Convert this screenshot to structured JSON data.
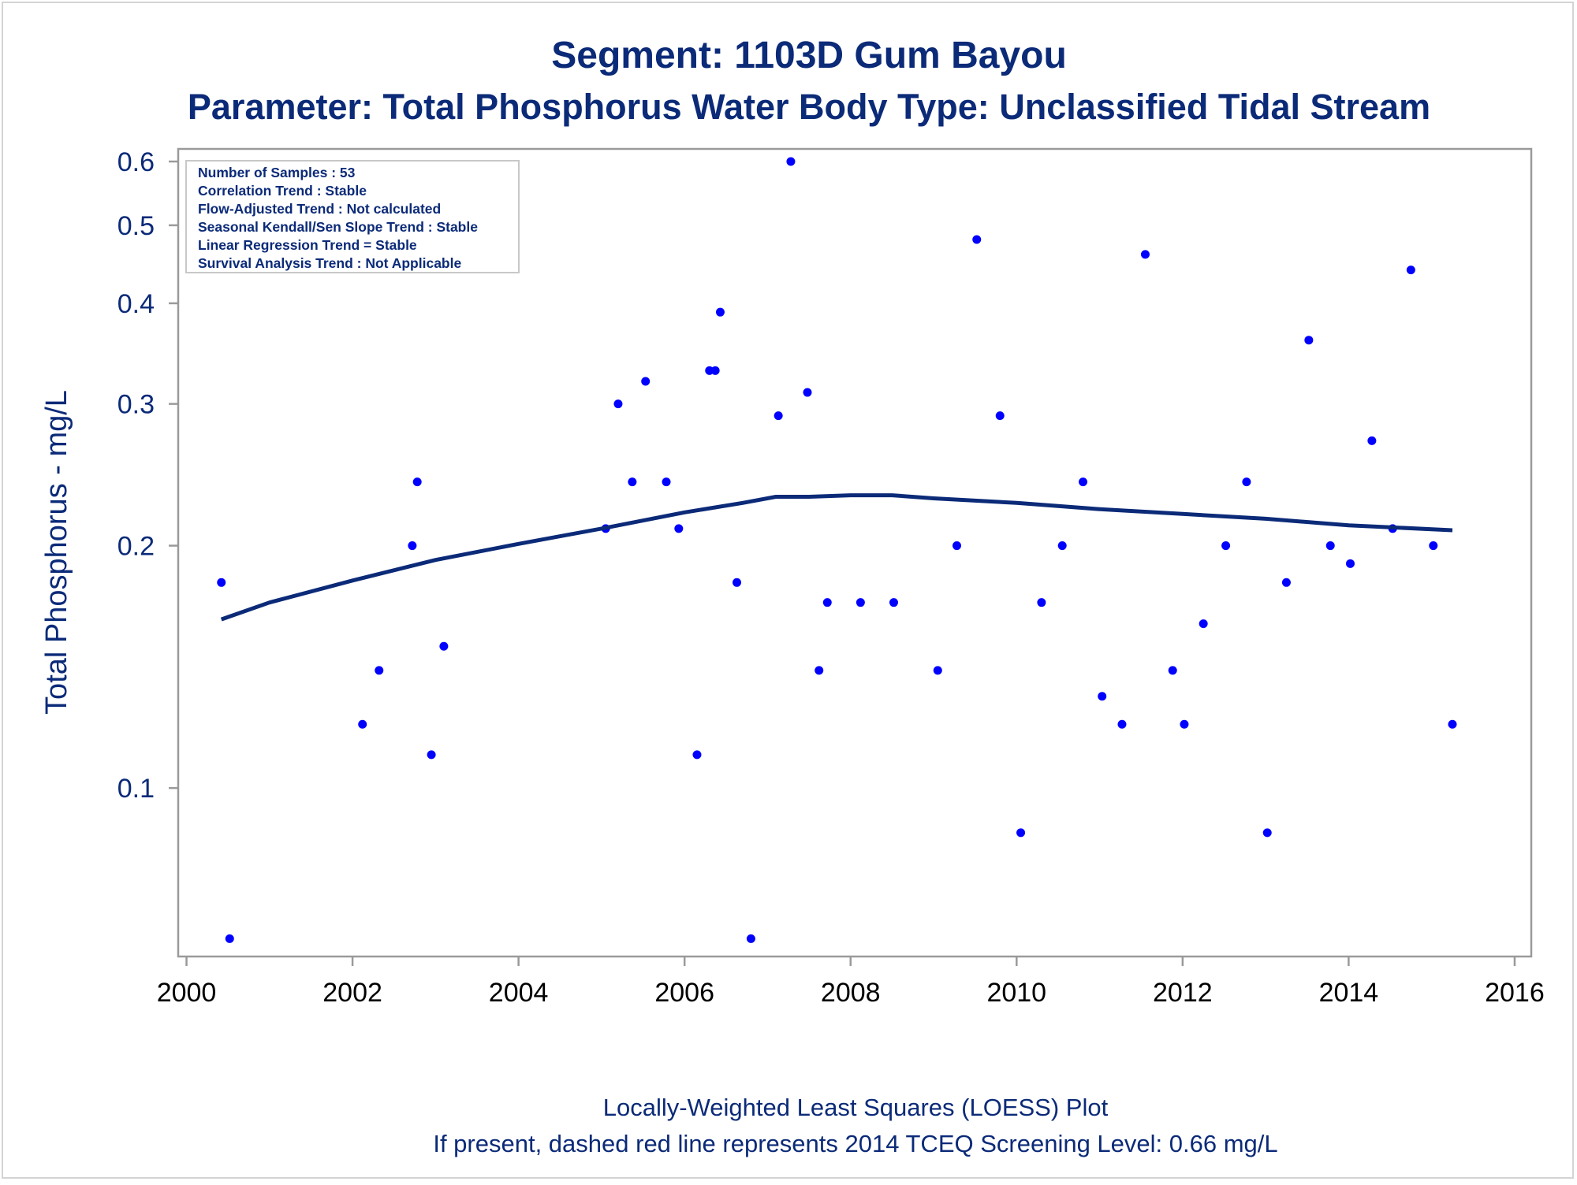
{
  "title": "Segment: 1103D  Gum Bayou",
  "subtitle": "Parameter: Total Phosphorus   Water Body Type: Unclassified Tidal Stream",
  "stats_box": [
    "Number of Samples : 53",
    "Correlation Trend : Stable",
    "Flow-Adjusted Trend : Not calculated",
    "Seasonal Kendall/Sen Slope Trend : Stable",
    "Linear Regression Trend = Stable",
    "Survival Analysis Trend : Not Applicable"
  ],
  "footnotes": [
    "Locally-Weighted Least Squares (LOESS) Plot",
    "If present, dashed red line represents 2014 TCEQ Screening Level: 0.66 mg/L"
  ],
  "colors": {
    "text": "#0b2a78",
    "points": "#0000ff",
    "loess": "#0b2a78",
    "axis": "#9a9a9a"
  },
  "chart_data": {
    "type": "scatter",
    "title": "Segment: 1103D  Gum Bayou",
    "subtitle": "Parameter: Total Phosphorus   Water Body Type: Unclassified Tidal Stream",
    "xlabel": "",
    "ylabel": "Total Phosphorus - mg/L",
    "x_scale": "linear",
    "y_scale": "log",
    "xlim": [
      1999.9,
      2016.2
    ],
    "ylim": [
      0.0636,
      0.6
    ],
    "x_ticks": [
      2000,
      2002,
      2004,
      2006,
      2008,
      2010,
      2012,
      2014,
      2016
    ],
    "x_tick_labels": [
      "2000",
      "2002",
      "2004",
      "2006",
      "2008",
      "2010",
      "2012",
      "2014",
      "2016"
    ],
    "y_ticks": [
      0.1,
      0.2,
      0.3,
      0.4,
      0.5,
      0.6
    ],
    "y_tick_labels": [
      "0.1",
      "0.2",
      "0.3",
      "0.4",
      "0.5",
      "0.6"
    ],
    "grid": false,
    "series": [
      {
        "kind": "points",
        "points": [
          [
            2000.42,
            0.18
          ],
          [
            2000.52,
            0.065
          ],
          [
            2002.12,
            0.12
          ],
          [
            2002.32,
            0.14
          ],
          [
            2002.72,
            0.2
          ],
          [
            2002.78,
            0.24
          ],
          [
            2002.95,
            0.11
          ],
          [
            2003.1,
            0.15
          ],
          [
            2005.05,
            0.21
          ],
          [
            2005.2,
            0.3
          ],
          [
            2005.37,
            0.24
          ],
          [
            2005.53,
            0.32
          ],
          [
            2005.78,
            0.24
          ],
          [
            2005.93,
            0.21
          ],
          [
            2006.15,
            0.11
          ],
          [
            2006.3,
            0.33
          ],
          [
            2006.37,
            0.33
          ],
          [
            2006.43,
            0.39
          ],
          [
            2006.63,
            0.18
          ],
          [
            2006.8,
            0.065
          ],
          [
            2007.13,
            0.29
          ],
          [
            2007.28,
            0.6
          ],
          [
            2007.48,
            0.31
          ],
          [
            2007.62,
            0.14
          ],
          [
            2007.72,
            0.17
          ],
          [
            2008.12,
            0.17
          ],
          [
            2008.52,
            0.17
          ],
          [
            2009.05,
            0.14
          ],
          [
            2009.28,
            0.2
          ],
          [
            2009.52,
            0.48
          ],
          [
            2009.8,
            0.29
          ],
          [
            2010.05,
            0.088
          ],
          [
            2010.3,
            0.17
          ],
          [
            2010.55,
            0.2
          ],
          [
            2010.8,
            0.24
          ],
          [
            2011.03,
            0.13
          ],
          [
            2011.27,
            0.12
          ],
          [
            2011.55,
            0.46
          ],
          [
            2011.88,
            0.14
          ],
          [
            2012.02,
            0.12
          ],
          [
            2012.25,
            0.16
          ],
          [
            2012.52,
            0.2
          ],
          [
            2012.77,
            0.24
          ],
          [
            2013.02,
            0.088
          ],
          [
            2013.25,
            0.18
          ],
          [
            2013.52,
            0.36
          ],
          [
            2013.78,
            0.2
          ],
          [
            2014.02,
            0.19
          ],
          [
            2014.28,
            0.27
          ],
          [
            2014.53,
            0.21
          ],
          [
            2014.75,
            0.44
          ],
          [
            2015.02,
            0.2
          ],
          [
            2015.25,
            0.12
          ]
        ]
      },
      {
        "kind": "loess",
        "points": [
          [
            2000.42,
            0.162
          ],
          [
            2001.0,
            0.17
          ],
          [
            2002.0,
            0.181
          ],
          [
            2003.0,
            0.192
          ],
          [
            2004.0,
            0.201
          ],
          [
            2005.0,
            0.21
          ],
          [
            2006.0,
            0.22
          ],
          [
            2006.7,
            0.226
          ],
          [
            2007.1,
            0.23
          ],
          [
            2007.5,
            0.23
          ],
          [
            2008.0,
            0.231
          ],
          [
            2008.5,
            0.231
          ],
          [
            2009.0,
            0.229
          ],
          [
            2010.0,
            0.226
          ],
          [
            2011.0,
            0.222
          ],
          [
            2012.0,
            0.219
          ],
          [
            2013.0,
            0.216
          ],
          [
            2014.0,
            0.212
          ],
          [
            2015.25,
            0.209
          ]
        ]
      }
    ]
  }
}
